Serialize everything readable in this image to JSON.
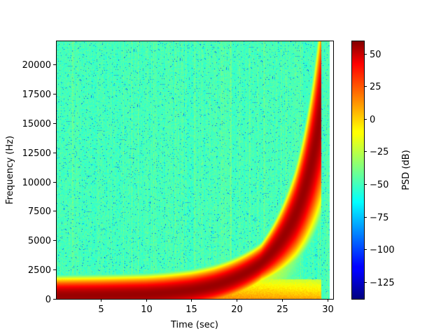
{
  "chart_data": {
    "type": "heatmap",
    "subtype": "spectrogram",
    "xlabel": "Time (sec)",
    "ylabel": "Frequency (Hz)",
    "xlim": [
      0.1,
      30.6
    ],
    "ylim": [
      0,
      22050
    ],
    "x_ticks": [
      5,
      10,
      15,
      20,
      25,
      30
    ],
    "y_ticks": [
      0,
      2500,
      5000,
      7500,
      10000,
      12500,
      15000,
      17500,
      20000
    ],
    "data_extent_x": [
      0.1,
      30.2
    ],
    "colormap": "jet",
    "colorbar": {
      "label": "PSD (dB)",
      "range": [
        -138,
        60
      ],
      "ticks": [
        50,
        25,
        0,
        -25,
        -50,
        -75,
        -100,
        -125
      ]
    },
    "background_level_db": -50,
    "chirp_ridge": {
      "peak_level_db": 55,
      "points": [
        {
          "t": 0.5,
          "f": 300
        },
        {
          "t": 5,
          "f": 350
        },
        {
          "t": 10,
          "f": 450
        },
        {
          "t": 12,
          "f": 550
        },
        {
          "t": 15,
          "f": 800
        },
        {
          "t": 17.5,
          "f": 1200
        },
        {
          "t": 20,
          "f": 1900
        },
        {
          "t": 22.5,
          "f": 3000
        },
        {
          "t": 25,
          "f": 5200
        },
        {
          "t": 26.5,
          "f": 7300
        },
        {
          "t": 27.5,
          "f": 9500
        },
        {
          "t": 28.5,
          "f": 12600
        },
        {
          "t": 29.3,
          "f": 16000
        }
      ]
    }
  }
}
